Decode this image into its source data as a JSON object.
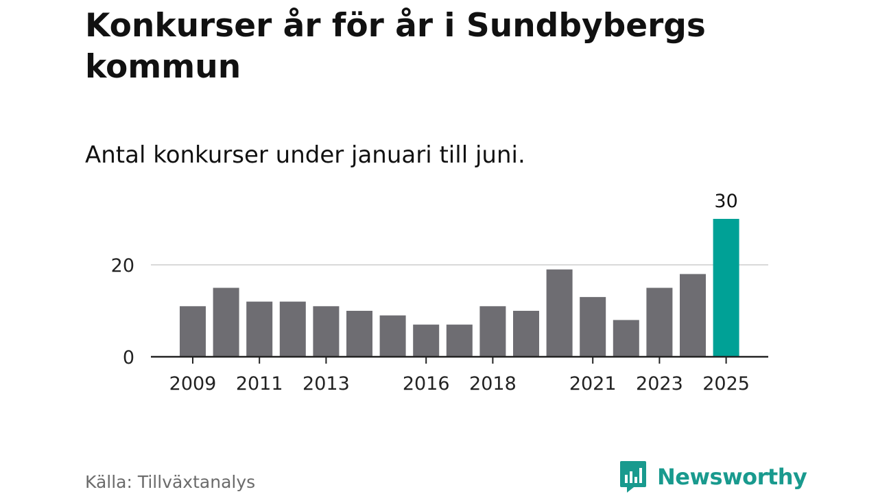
{
  "header": {
    "title": "Konkurser år för år i Sundbybergs kommun",
    "subtitle": "Antal konkurser under januari till juni."
  },
  "footer": {
    "source": "Källa: Tillväxtanalys",
    "brand": "Newsworthy"
  },
  "colors": {
    "bar": "#6e6d72",
    "highlight": "#00a196",
    "brand": "#199a8e",
    "grid": "#d9d9d9",
    "axis": "#222222"
  },
  "chart_data": {
    "type": "bar",
    "categories": [
      "2009",
      "2010",
      "2011",
      "2012",
      "2013",
      "2014",
      "2015",
      "2016",
      "2017",
      "2018",
      "2019",
      "2020",
      "2021",
      "2022",
      "2023",
      "2024",
      "2025"
    ],
    "values": [
      11,
      15,
      12,
      12,
      11,
      10,
      9,
      7,
      7,
      11,
      10,
      19,
      13,
      8,
      15,
      18,
      30
    ],
    "x_tick_labels": [
      "2009",
      "2011",
      "2013",
      "2016",
      "2018",
      "2021",
      "2023",
      "2025"
    ],
    "y_ticks": [
      0,
      20
    ],
    "ylim": [
      0,
      30
    ],
    "highlight_category": "2025",
    "data_labels": [
      {
        "category": "2025",
        "text": "30"
      }
    ],
    "grid": true,
    "title": "Konkurser år för år i Sundbybergs kommun",
    "subtitle": "Antal konkurser under januari till juni.",
    "xlabel": "",
    "ylabel": ""
  }
}
